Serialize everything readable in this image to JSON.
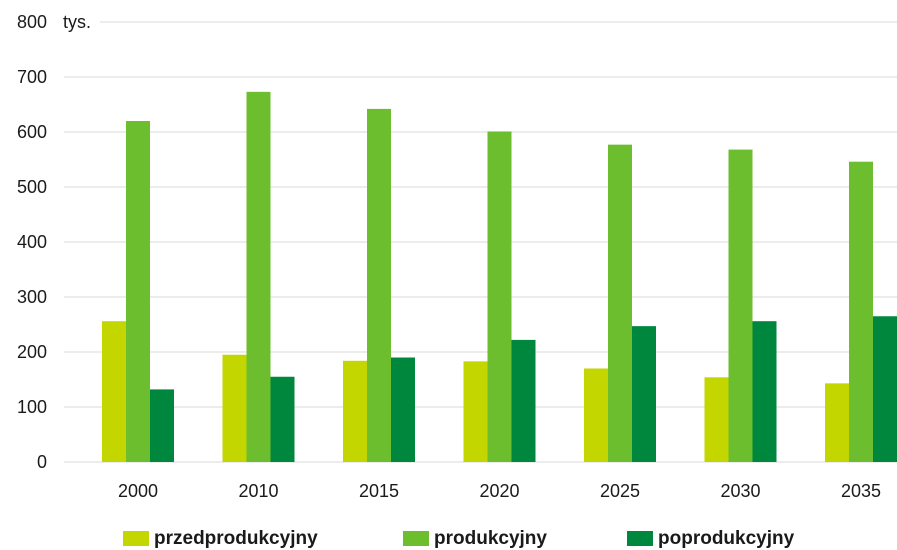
{
  "chart_data": {
    "type": "bar",
    "unit_label": "tys.",
    "categories": [
      "2000",
      "2010",
      "2015",
      "2020",
      "2025",
      "2030",
      "2035"
    ],
    "series": [
      {
        "name": "przedprodukcyjny",
        "color": "#c3d600",
        "values": [
          256,
          195,
          184,
          183,
          170,
          154,
          143
        ]
      },
      {
        "name": "produkcyjny",
        "color": "#6dbe2f",
        "values": [
          620,
          673,
          642,
          601,
          577,
          568,
          546
        ]
      },
      {
        "name": "poprodukcyjny",
        "color": "#00873e",
        "values": [
          132,
          155,
          190,
          222,
          247,
          256,
          265
        ]
      }
    ],
    "ylim": [
      0,
      800
    ],
    "yticks": [
      0,
      100,
      200,
      300,
      400,
      500,
      600,
      700,
      800
    ],
    "grid": true,
    "legend_position": "bottom"
  }
}
